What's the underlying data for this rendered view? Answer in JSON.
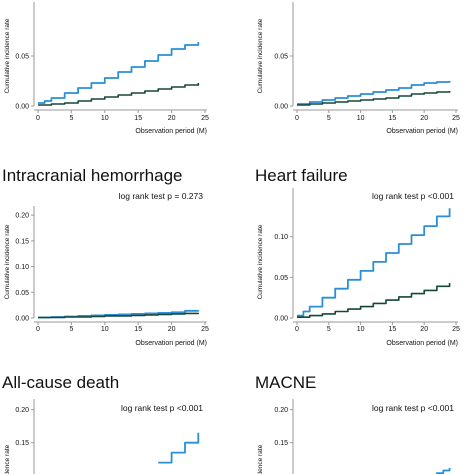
{
  "colors": {
    "series_a": "#2a8fd6",
    "series_b": "#14463a",
    "axis": "#9a9a9a",
    "text": "#111111",
    "background": "#ffffff"
  },
  "chart_data": [
    {
      "type": "line",
      "panel": "top-left",
      "title": "",
      "annotation": "",
      "xlabel": "Observation period (M)",
      "ylabel": "Cumulative incidence rate",
      "xlim": [
        0,
        25
      ],
      "ylim": [
        0,
        0.1
      ],
      "x_ticks": [
        "0",
        "5",
        "10",
        "15",
        "20",
        "25"
      ],
      "y_ticks": [
        "0.00",
        "0.05"
      ],
      "grid": false,
      "series": [
        {
          "x": [
            0,
            1,
            2,
            4,
            6,
            8,
            10,
            12,
            14,
            16,
            18,
            20,
            22,
            24
          ],
          "y": [
            0.003,
            0.005,
            0.008,
            0.013,
            0.018,
            0.023,
            0.028,
            0.034,
            0.039,
            0.045,
            0.051,
            0.057,
            0.061,
            0.064
          ]
        },
        {
          "x": [
            0,
            2,
            4,
            6,
            8,
            10,
            12,
            14,
            16,
            18,
            20,
            22,
            24
          ],
          "y": [
            0.001,
            0.002,
            0.003,
            0.005,
            0.007,
            0.009,
            0.011,
            0.013,
            0.015,
            0.017,
            0.019,
            0.021,
            0.023
          ]
        }
      ]
    },
    {
      "type": "line",
      "panel": "top-right",
      "title": "",
      "annotation": "",
      "xlabel": "Observation period (M)",
      "ylabel": "Cumulative incidence rate",
      "xlim": [
        0,
        25
      ],
      "ylim": [
        0,
        0.1
      ],
      "x_ticks": [
        "0",
        "5",
        "10",
        "15",
        "20",
        "25"
      ],
      "y_ticks": [
        "0.00",
        "0.05"
      ],
      "grid": false,
      "series": [
        {
          "x": [
            0,
            2,
            4,
            6,
            8,
            10,
            12,
            14,
            16,
            18,
            20,
            22,
            24
          ],
          "y": [
            0.002,
            0.004,
            0.006,
            0.008,
            0.01,
            0.012,
            0.014,
            0.016,
            0.018,
            0.021,
            0.023,
            0.024,
            0.025
          ]
        },
        {
          "x": [
            0,
            2,
            4,
            6,
            8,
            10,
            12,
            14,
            16,
            18,
            20,
            22,
            24
          ],
          "y": [
            0.001,
            0.002,
            0.003,
            0.004,
            0.005,
            0.006,
            0.007,
            0.008,
            0.01,
            0.012,
            0.013,
            0.014,
            0.015
          ]
        }
      ]
    },
    {
      "type": "line",
      "panel": "middle-left",
      "title": "Intracranial hemorrhage",
      "annotation": "log rank test p = 0.273",
      "xlabel": "Observation period (M)",
      "ylabel": "Cumulative incidence rate",
      "xlim": [
        0,
        25
      ],
      "ylim": [
        0,
        0.21
      ],
      "x_ticks": [
        "0",
        "5",
        "10",
        "15",
        "20",
        "25"
      ],
      "y_ticks": [
        "0.00",
        "0.05",
        "0.10",
        "0.15",
        "0.20"
      ],
      "grid": false,
      "series": [
        {
          "x": [
            0,
            2,
            4,
            6,
            8,
            10,
            12,
            14,
            16,
            18,
            20,
            22,
            24
          ],
          "y": [
            0.001,
            0.002,
            0.003,
            0.004,
            0.005,
            0.006,
            0.007,
            0.008,
            0.009,
            0.01,
            0.011,
            0.014,
            0.015
          ]
        },
        {
          "x": [
            0,
            2,
            4,
            6,
            8,
            10,
            12,
            14,
            16,
            18,
            20,
            22,
            24
          ],
          "y": [
            0.001,
            0.001,
            0.002,
            0.002,
            0.003,
            0.004,
            0.004,
            0.005,
            0.006,
            0.007,
            0.008,
            0.009,
            0.01
          ]
        }
      ]
    },
    {
      "type": "line",
      "panel": "middle-right",
      "title": "Heart failure",
      "annotation": "log rank test p <0.001",
      "xlabel": "Observation period (M)",
      "ylabel": "Cumulative incidence rate",
      "xlim": [
        0,
        25
      ],
      "ylim": [
        0,
        0.155
      ],
      "x_ticks": [
        "0",
        "5",
        "10",
        "15",
        "20",
        "25"
      ],
      "y_ticks": [
        "0.00",
        "0.05",
        "0.10"
      ],
      "grid": false,
      "series": [
        {
          "x": [
            0,
            1,
            2,
            4,
            6,
            8,
            10,
            12,
            14,
            16,
            18,
            20,
            22,
            24
          ],
          "y": [
            0.003,
            0.008,
            0.014,
            0.025,
            0.036,
            0.047,
            0.058,
            0.069,
            0.08,
            0.091,
            0.102,
            0.113,
            0.125,
            0.135
          ]
        },
        {
          "x": [
            0,
            2,
            4,
            6,
            8,
            10,
            12,
            14,
            16,
            18,
            20,
            22,
            24
          ],
          "y": [
            0.001,
            0.003,
            0.005,
            0.008,
            0.011,
            0.014,
            0.018,
            0.022,
            0.026,
            0.03,
            0.034,
            0.039,
            0.043
          ]
        }
      ]
    },
    {
      "type": "line",
      "panel": "bottom-left",
      "title": "All-cause death",
      "annotation": "log rank test p <0.001",
      "xlabel": "",
      "ylabel": "incidence rate",
      "xlim": [
        0,
        25
      ],
      "ylim": [
        0,
        0.21
      ],
      "x_ticks": [],
      "y_ticks": [
        "0.10",
        "0.15",
        "0.20"
      ],
      "grid": false,
      "series": [
        {
          "x": [
            18,
            20,
            22,
            24
          ],
          "y": [
            0.12,
            0.135,
            0.15,
            0.165
          ]
        }
      ]
    },
    {
      "type": "line",
      "panel": "bottom-right",
      "title": "MACNE",
      "annotation": "log rank test p <0.001",
      "xlabel": "",
      "ylabel": "incidence rate",
      "xlim": [
        0,
        25
      ],
      "ylim": [
        0,
        0.21
      ],
      "x_ticks": [],
      "y_ticks": [
        "0.10",
        "0.15",
        "0.20"
      ],
      "grid": false,
      "series": [
        {
          "x": [
            21,
            22,
            23,
            24
          ],
          "y": [
            0.1,
            0.104,
            0.108,
            0.112
          ]
        }
      ]
    }
  ]
}
